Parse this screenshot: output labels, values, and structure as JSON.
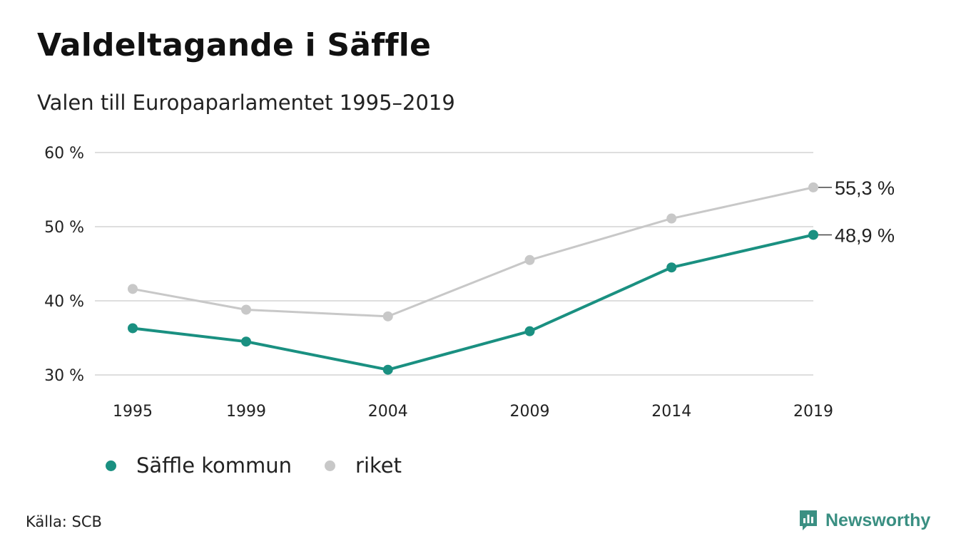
{
  "title": "Valdeltagande i Säffle",
  "subtitle": "Valen till Europaparlamentet 1995–2019",
  "source": "Källa: SCB",
  "brand": {
    "name": "Newsworthy",
    "icon": "newsworthy-logo-icon",
    "color": "#3a8f82"
  },
  "chart_data": {
    "type": "line",
    "x": [
      "1995",
      "1999",
      "2004",
      "2009",
      "2014",
      "2019"
    ],
    "series": [
      {
        "name": "Säffle kommun",
        "color": "#1a9081",
        "values": [
          36.3,
          34.5,
          30.7,
          35.9,
          44.5,
          48.9
        ]
      },
      {
        "name": "riket",
        "color": "#c8c8c8",
        "values": [
          41.6,
          38.8,
          37.9,
          45.5,
          51.1,
          55.3
        ]
      }
    ],
    "end_labels": [
      "48,9 %",
      "55,3 %"
    ],
    "y_ticks": [
      {
        "value": 30,
        "label": "30 %"
      },
      {
        "value": 40,
        "label": "40 %"
      },
      {
        "value": 50,
        "label": "50 %"
      },
      {
        "value": 60,
        "label": "60 %"
      }
    ],
    "ylim": [
      30,
      60
    ],
    "grid": true,
    "legend": "bottom-left"
  }
}
